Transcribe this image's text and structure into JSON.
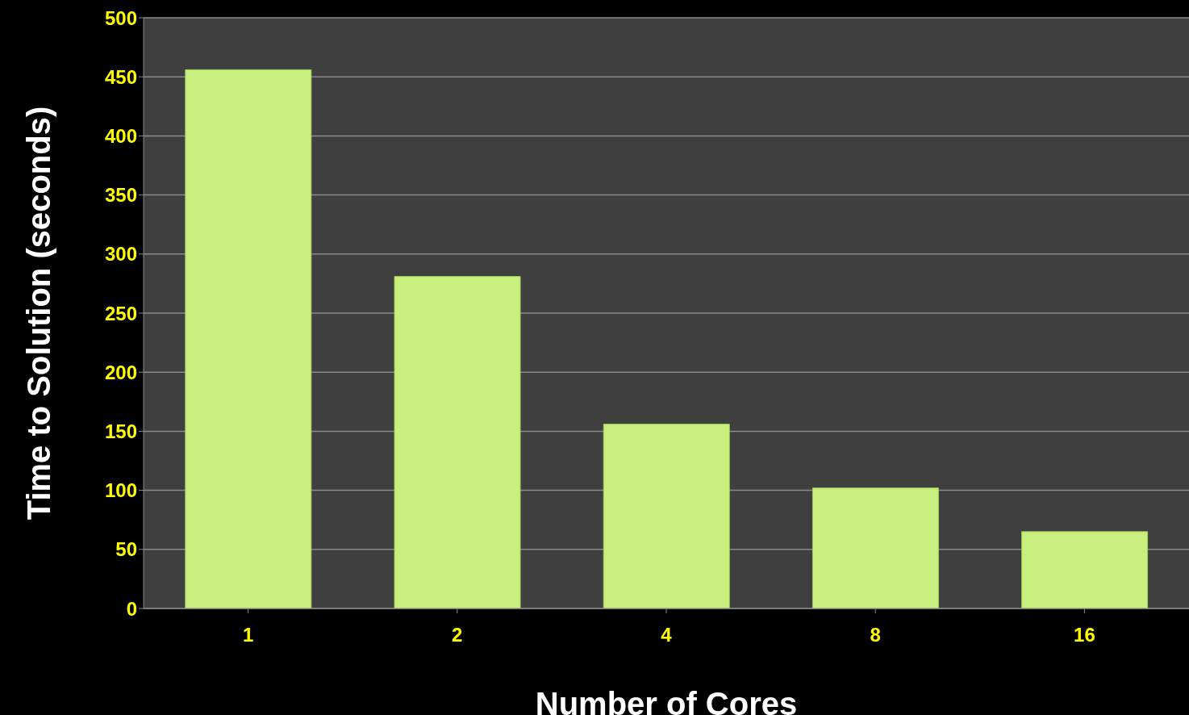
{
  "chart_data": {
    "type": "bar",
    "xlabel": "Number of  Cores",
    "ylabel": "Time to Solution (seconds)",
    "categories": [
      "1",
      "2",
      "4",
      "8",
      "16"
    ],
    "values": [
      456,
      281,
      156,
      102,
      65
    ],
    "color": "#c9ef7f",
    "ylim": [
      0,
      500
    ],
    "yticks": [
      0,
      50,
      100,
      150,
      200,
      250,
      300,
      350,
      400,
      450,
      500
    ],
    "grid": "y"
  }
}
